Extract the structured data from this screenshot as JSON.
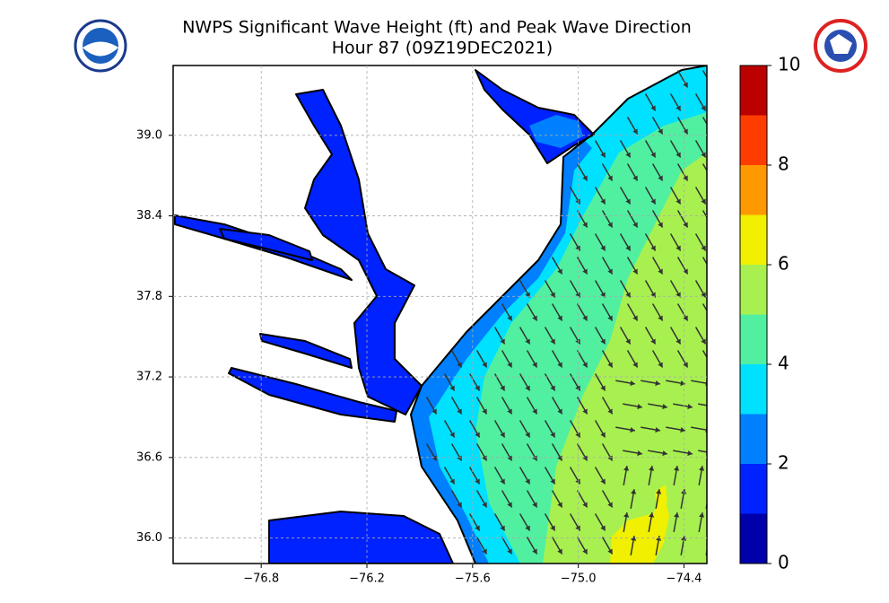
{
  "chart_data": {
    "type": "map",
    "title": "NWPS Significant Wave Height (ft) and Peak Wave Direction",
    "subtitle": "Hour 87 (09Z19DEC2021)",
    "xlim": [
      -77.3,
      -74.27
    ],
    "ylim": [
      35.81,
      39.52
    ],
    "xticks": [
      {
        "value": -76.8,
        "label": "−76.8"
      },
      {
        "value": -76.2,
        "label": "−76.2"
      },
      {
        "value": -75.6,
        "label": "−75.6"
      },
      {
        "value": -75.0,
        "label": "−75.0"
      },
      {
        "value": -74.4,
        "label": "−74.4"
      }
    ],
    "yticks": [
      {
        "value": 36.0,
        "label": "36.0"
      },
      {
        "value": 36.6,
        "label": "36.6"
      },
      {
        "value": 37.2,
        "label": "37.2"
      },
      {
        "value": 37.8,
        "label": "37.8"
      },
      {
        "value": 38.4,
        "label": "38.4"
      },
      {
        "value": 39.0,
        "label": "39.0"
      }
    ],
    "grid": true,
    "colorbar": {
      "levels": [
        0,
        1,
        2,
        3,
        4,
        5,
        6,
        7,
        8,
        9,
        10
      ],
      "colors": [
        "#0000aa",
        "#0022ff",
        "#0080ff",
        "#00e0ff",
        "#50f0a0",
        "#a8f050",
        "#f0f000",
        "#ff9900",
        "#ff3c00",
        "#bb0000"
      ],
      "ticks": [
        0,
        2,
        4,
        6,
        8,
        10
      ]
    }
  }
}
